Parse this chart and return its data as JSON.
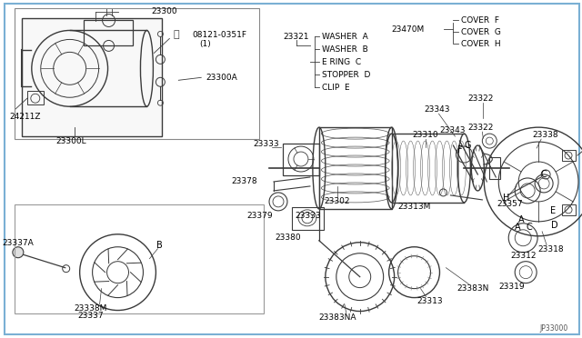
{
  "bg_color": "#ffffff",
  "border_color": "#7ab0d4",
  "line_color": "#000000",
  "dc": "#3a3a3a",
  "diagram_ref": "JP33000",
  "fs": 6.5,
  "fs_small": 6.0,
  "legend_items": [
    {
      "letter": "A",
      "name": "WASHER"
    },
    {
      "letter": "B",
      "name": "WASHER"
    },
    {
      "letter": "C",
      "name": "E RING"
    },
    {
      "letter": "D",
      "name": "STOPPER"
    },
    {
      "letter": "E",
      "name": "CLIP"
    }
  ],
  "legend2_items": [
    {
      "letter": "F",
      "name": "COVER"
    },
    {
      "letter": "G",
      "name": "COVER"
    },
    {
      "letter": "H",
      "name": "COVER"
    }
  ]
}
